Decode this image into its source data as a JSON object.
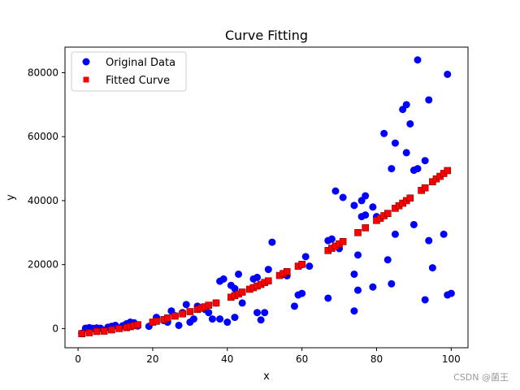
{
  "watermark": "CSDN @菌王",
  "chart_data": {
    "type": "scatter",
    "title": "Curve Fitting",
    "xlabel": "x",
    "ylabel": "y",
    "xlim": [
      -3.5,
      104.5
    ],
    "ylim": [
      -6000,
      88000
    ],
    "xticks": [
      0,
      20,
      40,
      60,
      80,
      100
    ],
    "yticks": [
      0,
      20000,
      40000,
      60000,
      80000
    ],
    "grid": false,
    "legend": {
      "position": "upper-left",
      "entries": [
        "Original Data",
        "Fitted Curve"
      ]
    },
    "series": [
      {
        "name": "Original Data",
        "marker": "circle",
        "color": "#0000ff",
        "points": [
          [
            1,
            -1500
          ],
          [
            2,
            100
          ],
          [
            3,
            300
          ],
          [
            4,
            50
          ],
          [
            5,
            200
          ],
          [
            6,
            100
          ],
          [
            7,
            -600
          ],
          [
            8,
            400
          ],
          [
            9,
            700
          ],
          [
            10,
            1000
          ],
          [
            11,
            200
          ],
          [
            12,
            900
          ],
          [
            13,
            1500
          ],
          [
            14,
            2000
          ],
          [
            15,
            1800
          ],
          [
            16,
            800
          ],
          [
            19,
            700
          ],
          [
            21,
            3500
          ],
          [
            23,
            2500
          ],
          [
            24,
            2000
          ],
          [
            25,
            5500
          ],
          [
            26,
            4000
          ],
          [
            27,
            1000
          ],
          [
            28,
            5000
          ],
          [
            29,
            7500
          ],
          [
            30,
            2000
          ],
          [
            31,
            3000
          ],
          [
            32,
            7000
          ],
          [
            33,
            6500
          ],
          [
            34,
            6000
          ],
          [
            35,
            5000
          ],
          [
            36,
            3000
          ],
          [
            37,
            8000
          ],
          [
            38,
            3000
          ],
          [
            38,
            14800
          ],
          [
            39,
            15500
          ],
          [
            40,
            2000
          ],
          [
            41,
            13500
          ],
          [
            42,
            3500
          ],
          [
            42,
            12500
          ],
          [
            43,
            17000
          ],
          [
            44,
            8000
          ],
          [
            47,
            15500
          ],
          [
            48,
            16000
          ],
          [
            48,
            5000
          ],
          [
            49,
            2700
          ],
          [
            50,
            5000
          ],
          [
            51,
            18500
          ],
          [
            52,
            27000
          ],
          [
            55,
            17000
          ],
          [
            56,
            16500
          ],
          [
            58,
            7000
          ],
          [
            59,
            10500
          ],
          [
            60,
            11000
          ],
          [
            60,
            20000
          ],
          [
            61,
            22500
          ],
          [
            62,
            19500
          ],
          [
            67,
            27500
          ],
          [
            67,
            9500
          ],
          [
            68,
            28000
          ],
          [
            69,
            43000
          ],
          [
            70,
            25000
          ],
          [
            71,
            41000
          ],
          [
            74,
            38500
          ],
          [
            74,
            5500
          ],
          [
            74,
            17000
          ],
          [
            75,
            23000
          ],
          [
            75,
            12000
          ],
          [
            76,
            40000
          ],
          [
            76,
            35000
          ],
          [
            77,
            41500
          ],
          [
            77,
            35500
          ],
          [
            79,
            38000
          ],
          [
            79,
            13000
          ],
          [
            80,
            35000
          ],
          [
            82,
            61000
          ],
          [
            83,
            21500
          ],
          [
            84,
            50000
          ],
          [
            84,
            14000
          ],
          [
            85,
            58000
          ],
          [
            85,
            29500
          ],
          [
            87,
            68500
          ],
          [
            88,
            70000
          ],
          [
            88,
            55000
          ],
          [
            89,
            64000
          ],
          [
            90,
            49500
          ],
          [
            90,
            32500
          ],
          [
            91,
            84000
          ],
          [
            91,
            50000
          ],
          [
            93,
            52500
          ],
          [
            93,
            9000
          ],
          [
            94,
            71500
          ],
          [
            94,
            27500
          ],
          [
            95,
            19000
          ],
          [
            98,
            29500
          ],
          [
            99,
            79500
          ],
          [
            99,
            10500
          ],
          [
            100,
            11000
          ]
        ]
      },
      {
        "name": "Fitted Curve",
        "marker": "square",
        "color": "#ff0000",
        "points": [
          [
            1,
            -1600
          ],
          [
            3,
            -1300
          ],
          [
            5,
            -900
          ],
          [
            7,
            -800
          ],
          [
            9,
            -400
          ],
          [
            11,
            0
          ],
          [
            13,
            300
          ],
          [
            14,
            600
          ],
          [
            15,
            900
          ],
          [
            16,
            1200
          ],
          [
            20,
            2000
          ],
          [
            21,
            2300
          ],
          [
            23,
            2800
          ],
          [
            24,
            3300
          ],
          [
            26,
            3900
          ],
          [
            28,
            4600
          ],
          [
            30,
            5300
          ],
          [
            32,
            6000
          ],
          [
            33,
            6400
          ],
          [
            34,
            6800
          ],
          [
            35,
            7300
          ],
          [
            37,
            8000
          ],
          [
            41,
            9800
          ],
          [
            42,
            10300
          ],
          [
            43,
            10800
          ],
          [
            44,
            11400
          ],
          [
            46,
            12300
          ],
          [
            47,
            12800
          ],
          [
            48,
            13300
          ],
          [
            49,
            13800
          ],
          [
            50,
            14400
          ],
          [
            51,
            14900
          ],
          [
            54,
            16600
          ],
          [
            55,
            17200
          ],
          [
            56,
            17800
          ],
          [
            59,
            19500
          ],
          [
            60,
            20100
          ],
          [
            67,
            24400
          ],
          [
            68,
            25100
          ],
          [
            69,
            25800
          ],
          [
            70,
            26500
          ],
          [
            71,
            27200
          ],
          [
            75,
            30000
          ],
          [
            77,
            31500
          ],
          [
            80,
            33800
          ],
          [
            81,
            34500
          ],
          [
            82,
            35300
          ],
          [
            83,
            36000
          ],
          [
            85,
            37600
          ],
          [
            86,
            38400
          ],
          [
            87,
            39200
          ],
          [
            88,
            40000
          ],
          [
            89,
            40800
          ],
          [
            92,
            43200
          ],
          [
            93,
            44000
          ],
          [
            95,
            45900
          ],
          [
            96,
            46800
          ],
          [
            97,
            47600
          ],
          [
            98,
            48500
          ],
          [
            99,
            49400
          ]
        ]
      }
    ]
  }
}
